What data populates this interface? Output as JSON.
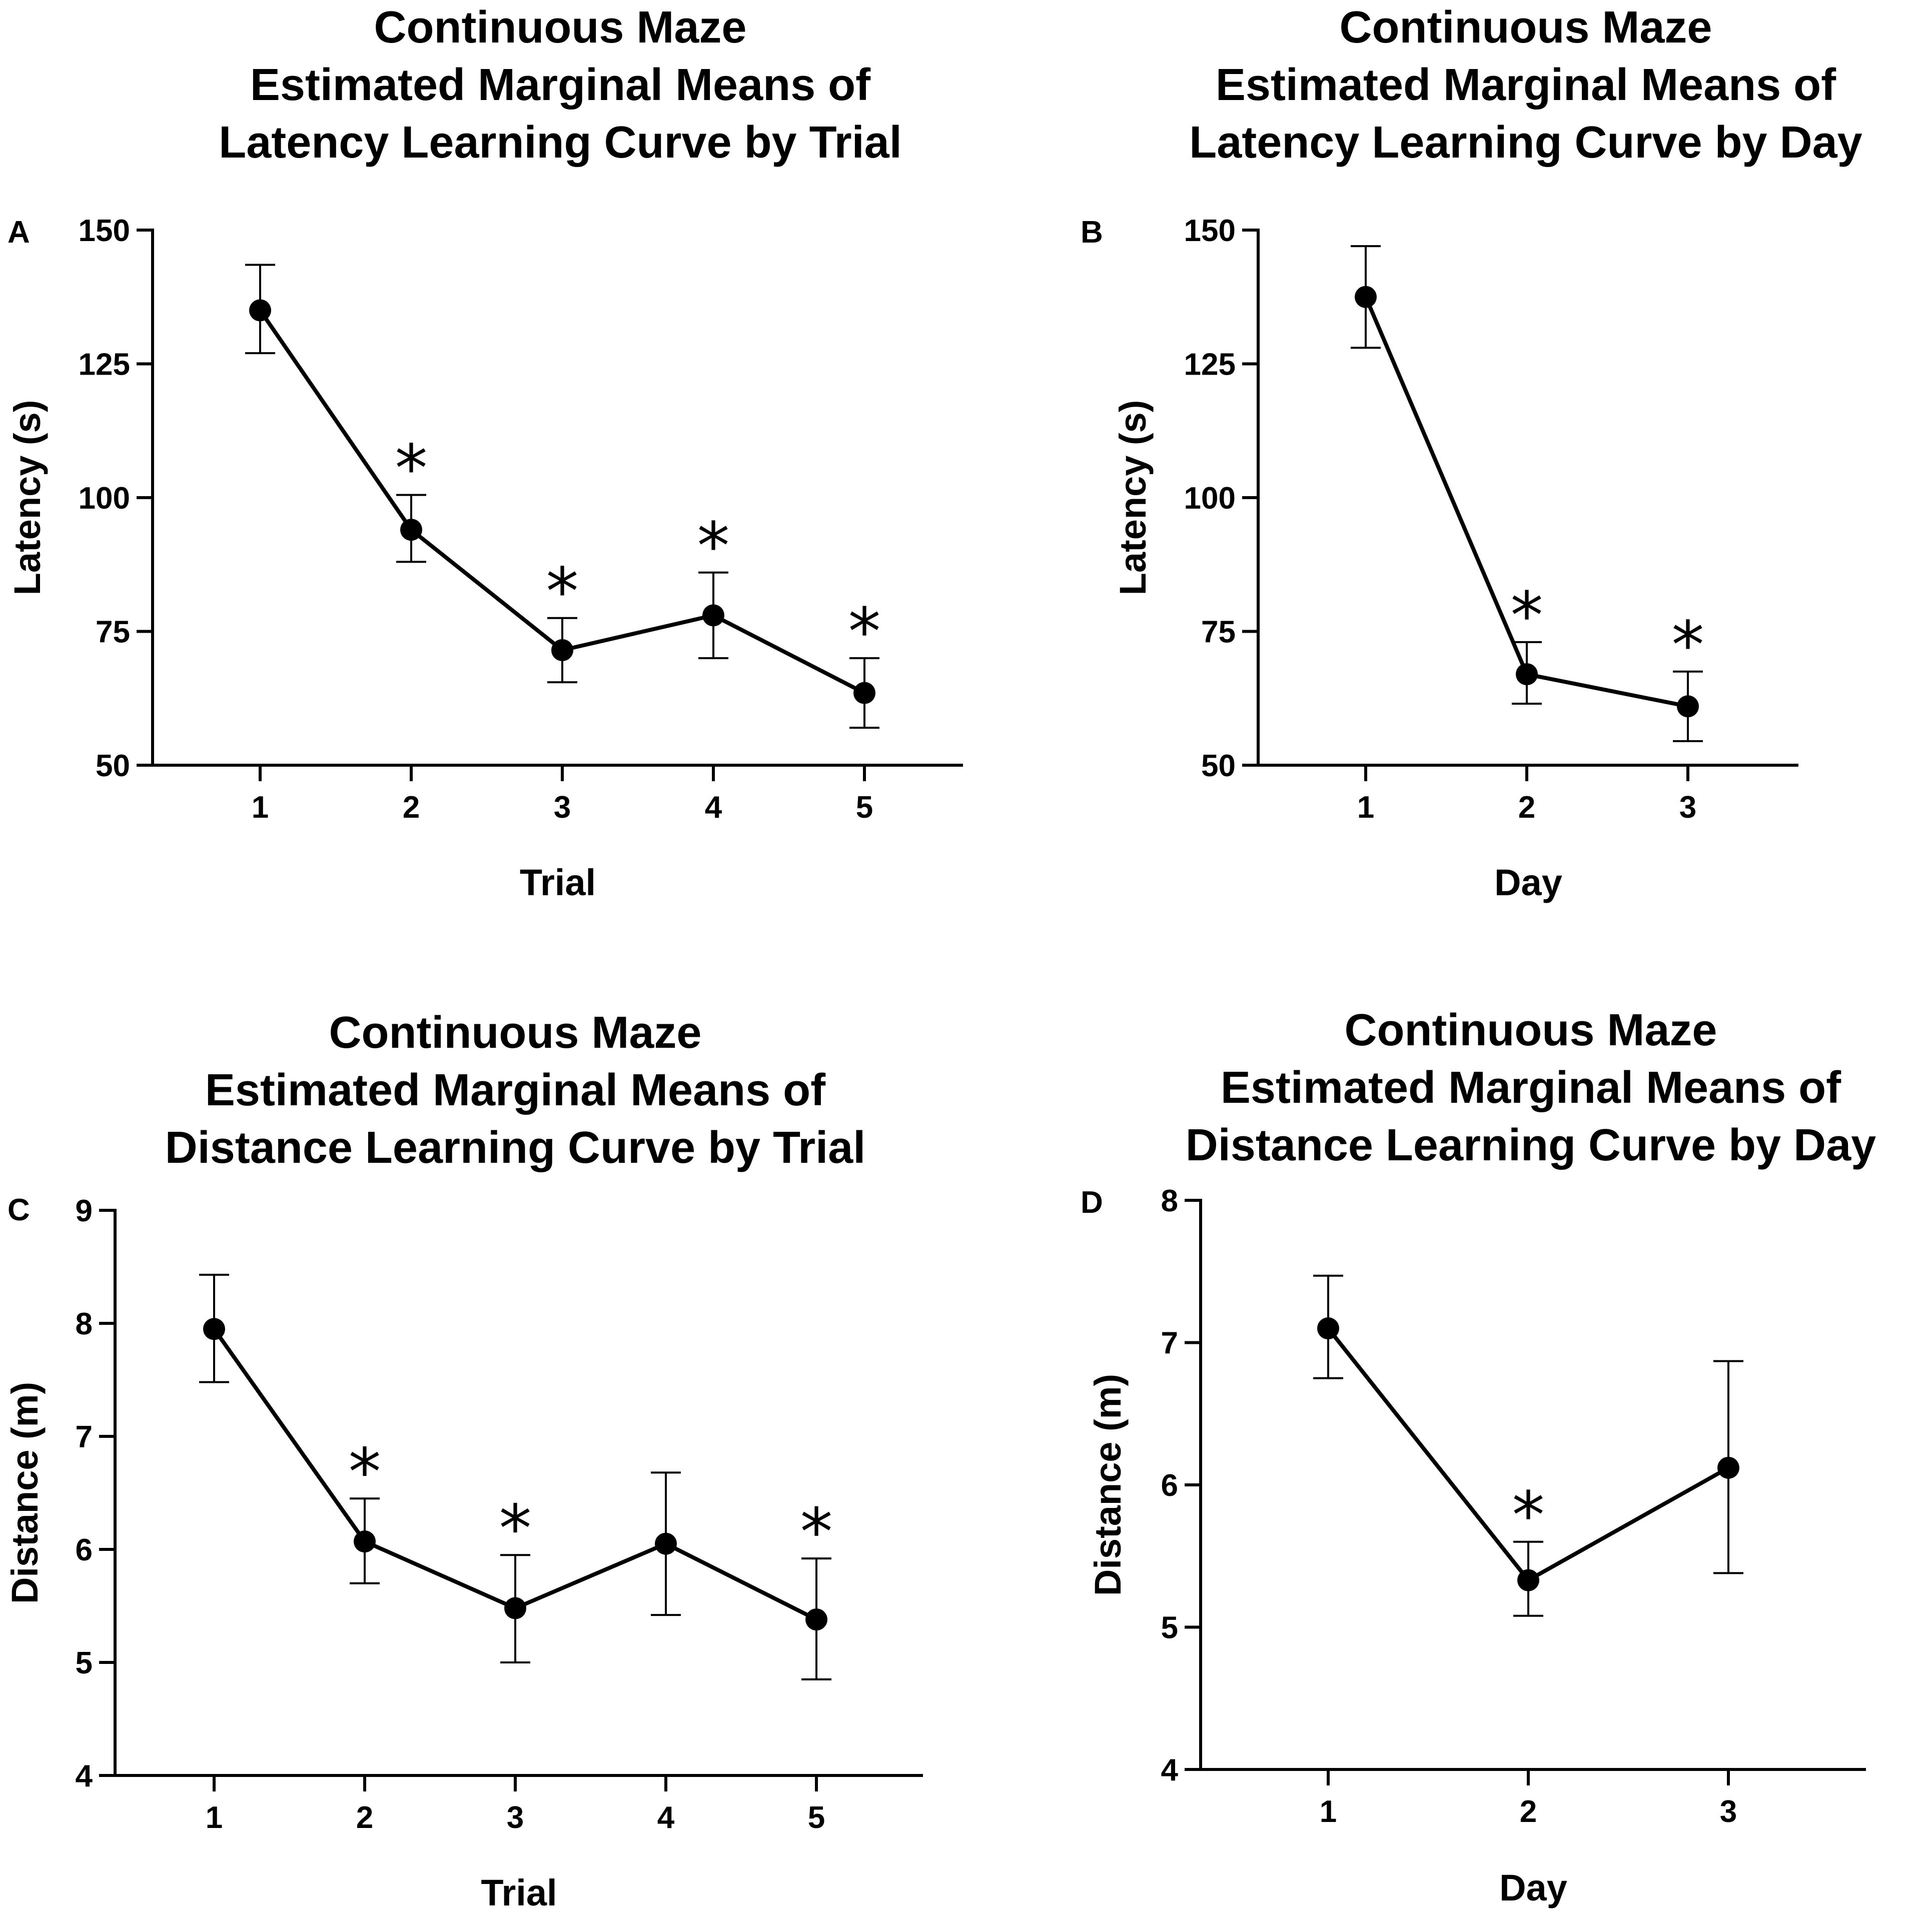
{
  "chart_data": [
    {
      "type": "line",
      "panel": "A",
      "title": [
        "Continuous Maze",
        "Estimated Marginal Means of",
        "Latency Learning Curve by Trial"
      ],
      "xlabel": "Trial",
      "ylabel": "Latency (s)",
      "categories": [
        "1",
        "2",
        "3",
        "4",
        "5"
      ],
      "yticks": [
        "50",
        "75",
        "100",
        "125",
        "150"
      ],
      "ylim": [
        50,
        150
      ],
      "values": [
        135,
        94,
        71.5,
        78,
        63.5
      ],
      "err_upper": [
        143.5,
        100.5,
        77.5,
        86,
        70
      ],
      "err_lower": [
        127,
        88,
        65.5,
        70,
        57
      ],
      "significance": [
        "",
        "*",
        "*",
        "*",
        "*"
      ]
    },
    {
      "type": "line",
      "panel": "B",
      "title": [
        "Continuous Maze",
        "Estimated Marginal Means of",
        "Latency Learning Curve by Day"
      ],
      "xlabel": "Day",
      "ylabel": "Latency (s)",
      "categories": [
        "1",
        "2",
        "3"
      ],
      "yticks": [
        "50",
        "75",
        "100",
        "125",
        "150"
      ],
      "ylim": [
        50,
        150
      ],
      "values": [
        137.5,
        67,
        61
      ],
      "err_upper": [
        147,
        73,
        67.5
      ],
      "err_lower": [
        128,
        61.5,
        54.5
      ],
      "significance": [
        "",
        "*",
        "*"
      ]
    },
    {
      "type": "line",
      "panel": "C",
      "title": [
        "Continuous Maze",
        "Estimated Marginal Means of",
        "Distance Learning Curve by Trial"
      ],
      "xlabel": "Trial",
      "ylabel": "Distance (m)",
      "categories": [
        "1",
        "2",
        "3",
        "4",
        "5"
      ],
      "yticks": [
        "4",
        "5",
        "6",
        "7",
        "8",
        "9"
      ],
      "ylim": [
        4,
        9
      ],
      "values": [
        7.95,
        6.07,
        5.48,
        6.05,
        5.38
      ],
      "err_upper": [
        8.43,
        6.45,
        5.95,
        6.68,
        5.92
      ],
      "err_lower": [
        7.48,
        5.7,
        5.0,
        5.42,
        4.85
      ],
      "significance": [
        "",
        "*",
        "*",
        "",
        "*"
      ]
    },
    {
      "type": "line",
      "panel": "D",
      "title": [
        "Continuous Maze",
        "Estimated Marginal Means of",
        "Distance Learning Curve by Day"
      ],
      "xlabel": "Day",
      "ylabel": "Distance (m)",
      "categories": [
        "1",
        "2",
        "3"
      ],
      "yticks": [
        "4",
        "5",
        "6",
        "7",
        "8"
      ],
      "ylim": [
        4,
        8
      ],
      "values": [
        7.1,
        5.33,
        6.12
      ],
      "err_upper": [
        7.47,
        5.6,
        6.87
      ],
      "err_lower": [
        6.75,
        5.08,
        5.38
      ],
      "significance": [
        "",
        "*",
        ""
      ]
    }
  ]
}
